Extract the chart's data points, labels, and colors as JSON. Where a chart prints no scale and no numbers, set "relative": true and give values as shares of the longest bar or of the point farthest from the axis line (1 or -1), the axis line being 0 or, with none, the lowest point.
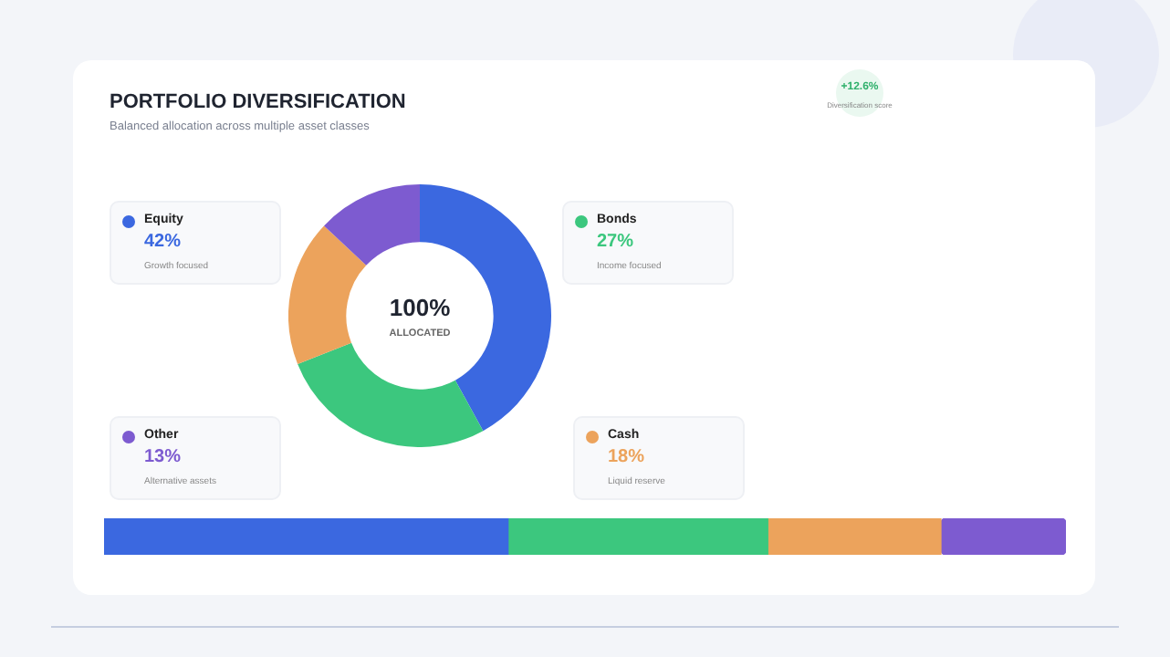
{
  "chart_data": [
    {
      "type": "donut",
      "title": "PORTFOLIO DIVERSIFICATION",
      "subtitle": "Balanced allocation across multiple asset classes",
      "categories": [
        "Equity",
        "Bonds",
        "Cash",
        "Other"
      ],
      "values": [
        42,
        27,
        18,
        13
      ],
      "colors": [
        "#3b68e0",
        "#3cc77e",
        "#eca35c",
        "#7d5bd0"
      ],
      "value_labels": [
        "42%",
        "27%",
        "18%",
        "13%"
      ],
      "legend": "left",
      "annotations": [
        "100%",
        "ALLOCATED",
        "+12.6%",
        "Diversification score",
        "Growth focused",
        "Income focused",
        "Liquid reserve",
        "Alternative assets"
      ]
    },
    {
      "type": "bar",
      "orientation": "horizontal",
      "stacked": true,
      "relative": true,
      "categories": [
        null
      ],
      "series": [
        {
          "color": "#3b68e0",
          "values": [
            0.42
          ]
        },
        {
          "color": "#3cc77e",
          "values": [
            0.27
          ]
        },
        {
          "color": "#eca35c",
          "values": [
            0.18
          ]
        },
        {
          "color": "#7d5bd0",
          "values": [
            0.13
          ]
        }
      ]
    }
  ]
}
